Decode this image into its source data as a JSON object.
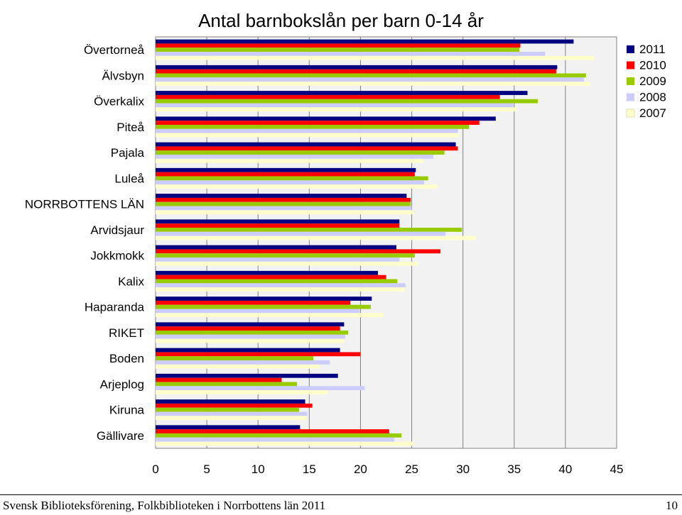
{
  "chart_data": {
    "type": "bar",
    "orientation": "horizontal",
    "title": "Antal barnbokslån per barn 0-14 år",
    "categories": [
      "Övertorneå",
      "Älvsbyn",
      "Överkalix",
      "Piteå",
      "Pajala",
      "Luleå",
      "NORRBOTTENS LÄN",
      "Arvidsjaur",
      "Jokkmokk",
      "Kalix",
      "Haparanda",
      "RIKET",
      "Boden",
      "Arjeplog",
      "Kiruna",
      "Gällivare"
    ],
    "series": [
      {
        "name": "2011",
        "color": "#000080",
        "values": [
          40.8,
          39.2,
          36.3,
          33.2,
          29.3,
          25.4,
          24.5,
          23.8,
          23.5,
          21.7,
          21.1,
          18.4,
          18.0,
          17.8,
          14.6,
          14.1
        ]
      },
      {
        "name": "2010",
        "color": "#ff0000",
        "values": [
          35.6,
          39.1,
          33.6,
          31.6,
          29.5,
          25.3,
          24.9,
          23.8,
          27.8,
          22.5,
          19.0,
          18.0,
          20.0,
          12.3,
          15.3,
          22.8
        ]
      },
      {
        "name": "2009",
        "color": "#99cc00",
        "values": [
          35.5,
          42.0,
          37.3,
          30.6,
          28.2,
          26.6,
          24.9,
          29.9,
          25.3,
          23.6,
          21.0,
          18.8,
          15.4,
          13.8,
          14.0,
          24.0
        ]
      },
      {
        "name": "2008",
        "color": "#ccccff",
        "values": [
          38.0,
          41.8,
          34.9,
          29.5,
          27.1,
          26.2,
          25.0,
          28.3,
          23.8,
          24.4,
          19.9,
          18.5,
          17.0,
          20.4,
          14.8,
          23.3
        ]
      },
      {
        "name": "2007",
        "color": "#ffffcc",
        "values": [
          42.8,
          42.4,
          35.3,
          29.6,
          26.1,
          27.5,
          25.2,
          31.3,
          25.6,
          24.3,
          22.2,
          18.4,
          16.0,
          16.8,
          14.7,
          25.2
        ]
      }
    ],
    "xlim": [
      0,
      45
    ],
    "xticks": [
      0,
      5,
      10,
      15,
      20,
      25,
      30,
      35,
      40,
      45
    ],
    "gridlines": "vertical",
    "legend": "top-right",
    "plot_background": "#f2f2f2"
  },
  "footer": {
    "source": "Svensk Biblioteksförening, Folkbiblioteken i Norrbottens län 2011",
    "page_number": "10"
  }
}
